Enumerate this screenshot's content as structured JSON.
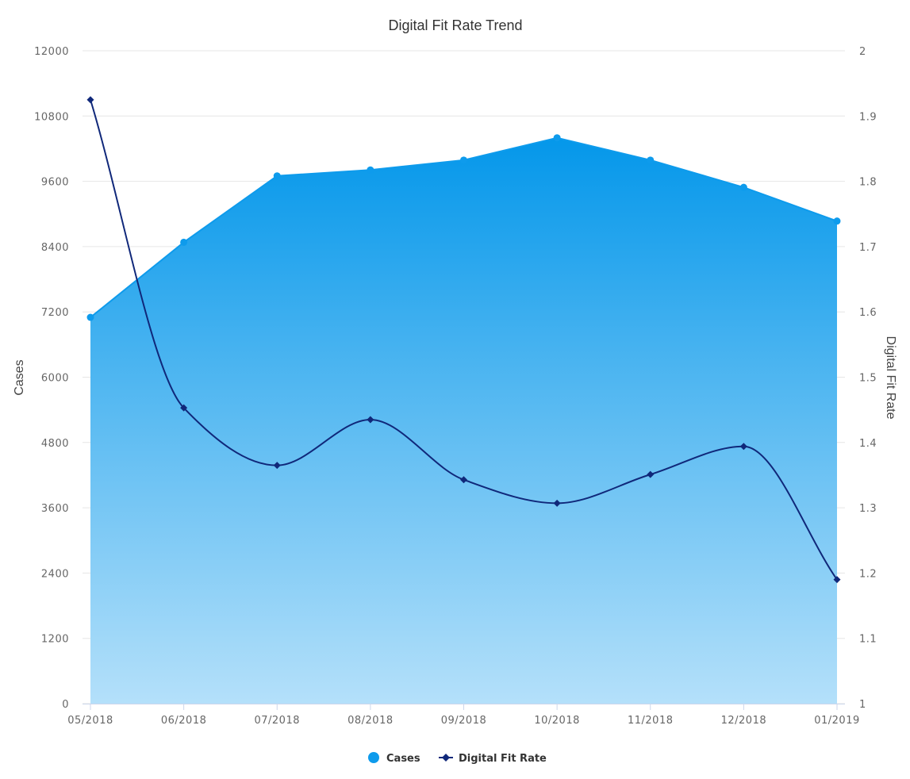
{
  "chart_data": {
    "type": "area-line-combo",
    "title": "Digital Fit Rate Trend",
    "categories": [
      "05/2018",
      "06/2018",
      "07/2018",
      "08/2018",
      "09/2018",
      "10/2018",
      "11/2018",
      "12/2018",
      "01/2019"
    ],
    "y_left": {
      "label": "Cases",
      "ylim": [
        0,
        12000
      ],
      "ticks": [
        "0",
        "1200",
        "2400",
        "3600",
        "4800",
        "6000",
        "7200",
        "8400",
        "9600",
        "10800",
        "12000"
      ]
    },
    "y_right": {
      "label": "Digital Fit Rate",
      "ylim": [
        1,
        2
      ],
      "ticks": [
        "1",
        "1.1",
        "1.2",
        "1.3",
        "1.4",
        "1.5",
        "1.6",
        "1.7",
        "1.8",
        "1.9",
        "2"
      ]
    },
    "series": [
      {
        "name": "Cases",
        "type": "area",
        "axis": "left",
        "color": "#0e9bec",
        "values": [
          7100,
          8480,
          9700,
          9810,
          9990,
          10400,
          9990,
          9490,
          8870
        ]
      },
      {
        "name": "Digital Fit Rate",
        "type": "spline",
        "axis": "right",
        "color": "#10287a",
        "values": [
          1.925,
          1.453,
          1.365,
          1.435,
          1.343,
          1.307,
          1.351,
          1.394,
          1.19
        ]
      }
    ],
    "grid": true,
    "legend": "bottom-center"
  }
}
